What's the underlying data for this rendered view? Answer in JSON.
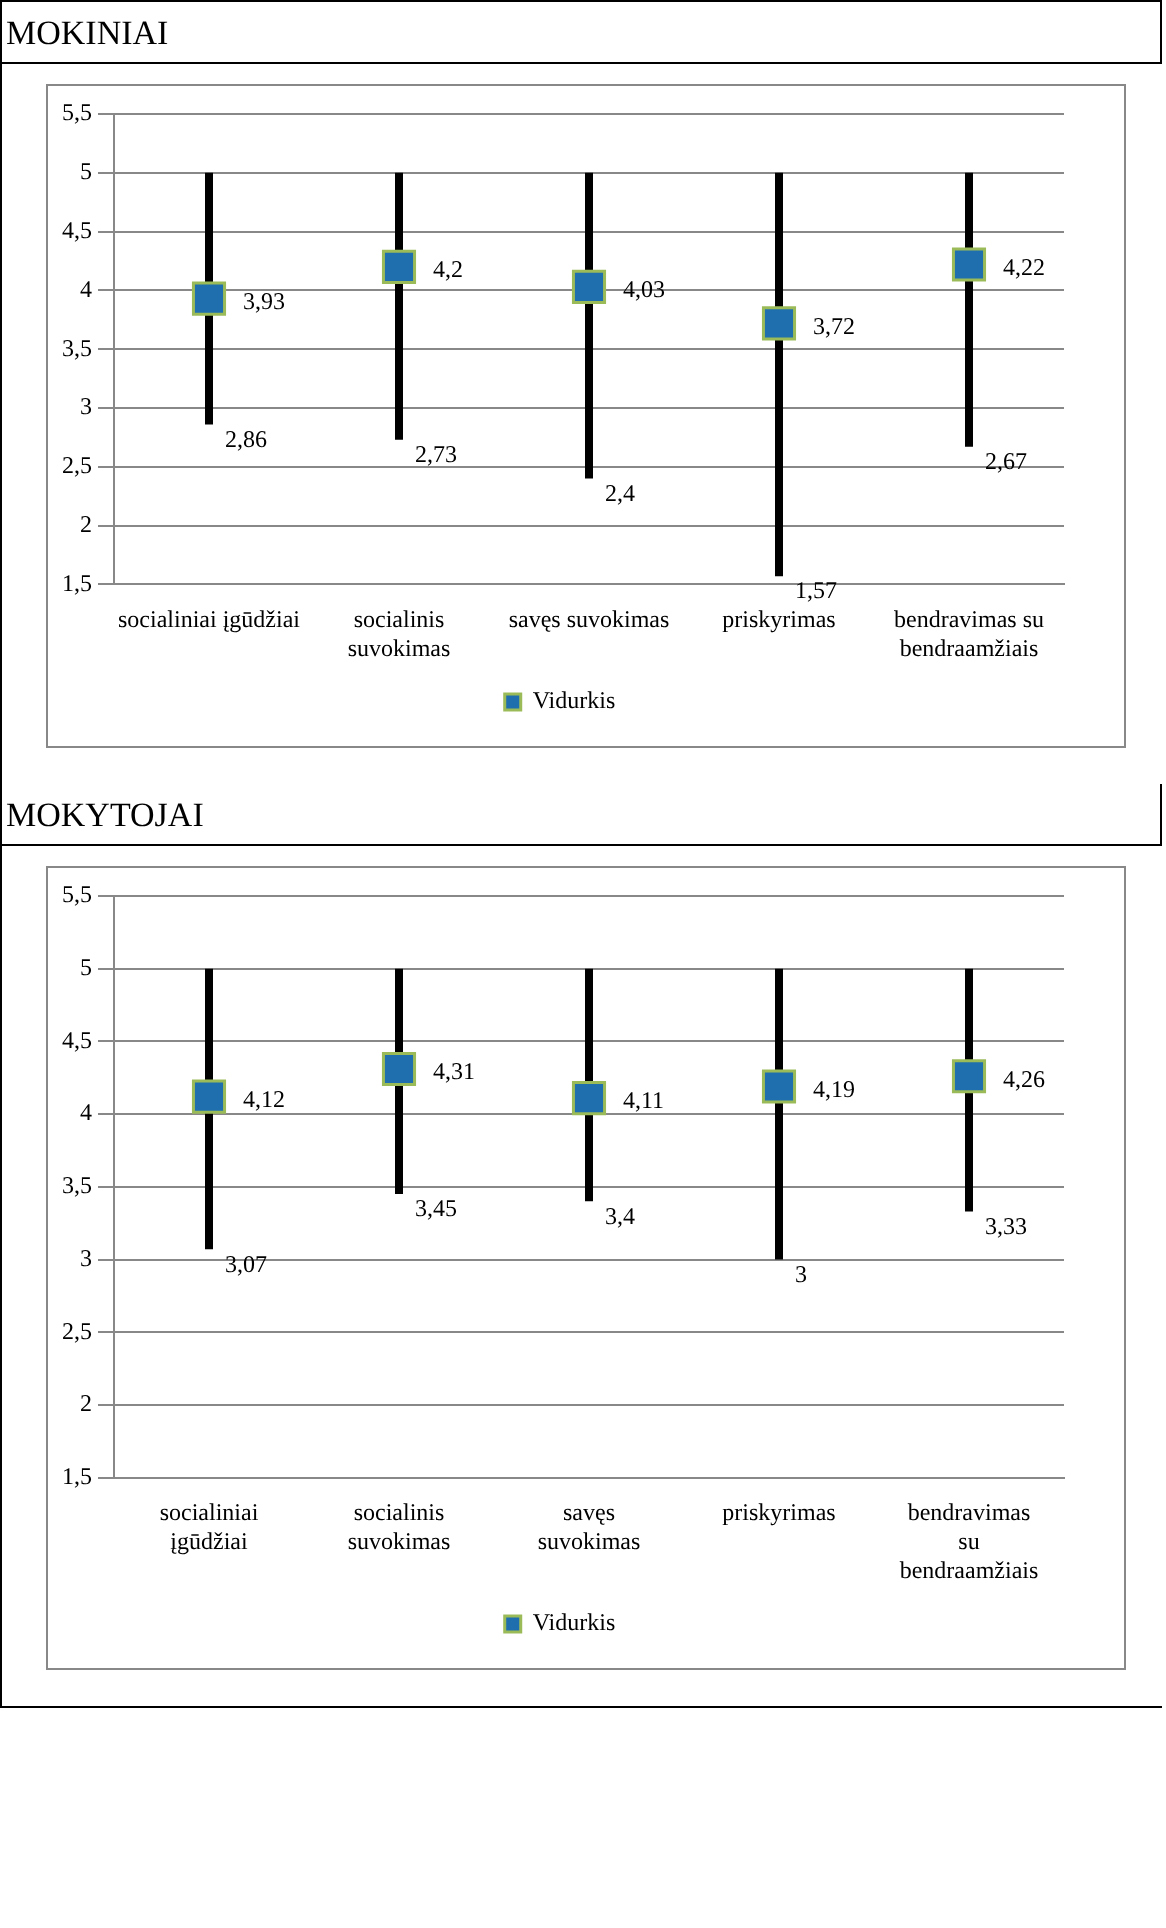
{
  "chart_data": [
    {
      "type": "scatter",
      "title": "MOKINIAI",
      "categories": [
        "socialiniai įgūdžiai",
        "socialinis suvokimas",
        "savęs suvokimas",
        "priskyrimas",
        "bendravimas su bendraamžiais"
      ],
      "series": [
        {
          "name": "Vidurkis",
          "color": "#1f6fae",
          "values": [
            3.93,
            4.2,
            4.03,
            3.72,
            4.22
          ],
          "value_labels": [
            "3,93",
            "4,2",
            "4,03",
            "3,72",
            "4,22"
          ],
          "errors": [
            [
              2.86,
              5
            ],
            [
              2.73,
              5
            ],
            [
              2.4,
              5
            ],
            [
              1.57,
              5
            ],
            [
              2.67,
              5
            ]
          ]
        }
      ],
      "annotations": [
        {
          "text": "2,86",
          "x": "socialiniai įgūdžiai",
          "y": 2.86
        },
        {
          "text": "2,73",
          "x": "socialinis suvokimas",
          "y": 2.73
        },
        {
          "text": "2,4",
          "x": "savęs suvokimas",
          "y": 2.4
        },
        {
          "text": "1,57",
          "x": "priskyrimas",
          "y": 1.57
        },
        {
          "text": "2,67",
          "x": "bendravimas su bendraamžiais",
          "y": 2.67
        }
      ],
      "ylim": [
        1.5,
        5.5
      ],
      "yticks": [
        {
          "value": 1.5,
          "label": "1,5"
        },
        2,
        {
          "value": 2.5,
          "label": "2,5"
        },
        3,
        {
          "value": 3.5,
          "label": "3,5"
        },
        4,
        {
          "value": 4.5,
          "label": "4,5"
        },
        5,
        {
          "value": 5.5,
          "label": "5,5"
        }
      ],
      "grid": "y",
      "legend": "bottom",
      "marker": "square"
    },
    {
      "type": "scatter",
      "title": "MOKYTOJAI",
      "categories": [
        "socialiniai įgūdžiai",
        "socialinis suvokimas",
        "savęs suvokimas",
        "priskyrimas",
        "bendravimas su bendraamžiais"
      ],
      "series": [
        {
          "name": "Vidurkis",
          "color": "#1f6fae",
          "values": [
            4.12,
            4.31,
            4.11,
            4.19,
            4.26
          ],
          "value_labels": [
            "4,12",
            "4,31",
            "4,11",
            "4,19",
            "4,26"
          ],
          "errors": [
            [
              3.07,
              5
            ],
            [
              3.45,
              5
            ],
            [
              3.4,
              5
            ],
            [
              3,
              5
            ],
            [
              3.33,
              5
            ]
          ]
        }
      ],
      "annotations": [
        {
          "text": "3,07",
          "x": "socialiniai įgūdžiai",
          "y": 3.07
        },
        {
          "text": "3,45",
          "x": "socialinis suvokimas",
          "y": 3.45
        },
        {
          "text": "3,4",
          "x": "savęs suvokimas",
          "y": 3.4
        },
        {
          "text": "3",
          "x": "priskyrimas",
          "y": 3
        },
        {
          "text": "3,33",
          "x": "bendravimas su bendraamžiais",
          "y": 3.33
        }
      ],
      "ylim": [
        1.5,
        5.5
      ],
      "yticks": [
        {
          "value": 1.5,
          "label": "1,5"
        },
        2,
        {
          "value": 2.5,
          "label": "2,5"
        },
        3,
        {
          "value": 3.5,
          "label": "3,5"
        },
        4,
        {
          "value": 4.5,
          "label": "4,5"
        },
        5,
        {
          "value": 5.5,
          "label": "5,5"
        }
      ],
      "grid": "y",
      "legend": "bottom",
      "marker": "square"
    }
  ]
}
